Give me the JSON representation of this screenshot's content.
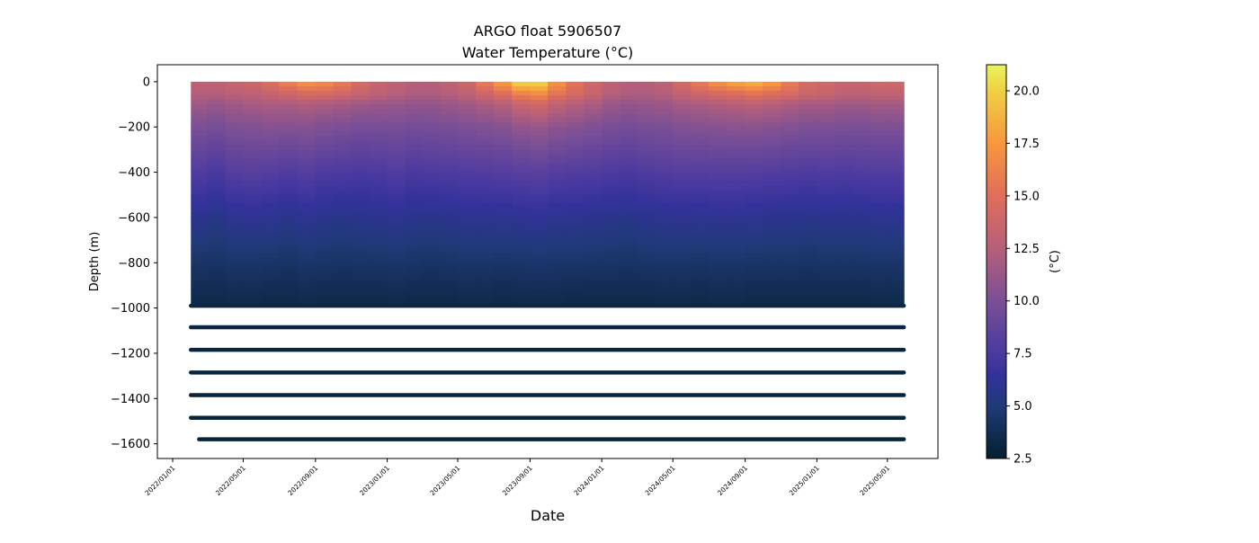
{
  "chart_data": {
    "type": "heatmap",
    "title": "ARGO float 5906507",
    "subtitle": "Water Temperature (°C)",
    "xlabel": "Date",
    "ylabel": "Depth (m)",
    "colorbar_label": "(°C)",
    "xlim": [
      "2021-12-06",
      "2025-07-26"
    ],
    "ylim": [
      -1665,
      75
    ],
    "x_ticks": [
      "2022/01/01",
      "2022/05/01",
      "2022/09/01",
      "2023/01/01",
      "2023/05/01",
      "2023/09/01",
      "2024/01/01",
      "2024/05/01",
      "2024/09/01",
      "2025/01/01",
      "2025/05/01"
    ],
    "y_ticks": [
      0,
      -200,
      -400,
      -600,
      -800,
      -1000,
      -1200,
      -1400,
      -1600
    ],
    "y_tick_labels": [
      "0",
      "−200",
      "−400",
      "−600",
      "−800",
      "−1000",
      "−1200",
      "−1400",
      "−1600"
    ],
    "colorbar_range": [
      2.5,
      21.24
    ],
    "colorbar_ticks": [
      "2.5",
      "5.0",
      "7.5",
      "10.0",
      "12.5",
      "15.0",
      "17.5",
      "20.0"
    ],
    "colormap_stops": [
      [
        0.0,
        "#04202f"
      ],
      [
        0.133,
        "#203a78"
      ],
      [
        0.21,
        "#32329a"
      ],
      [
        0.27,
        "#4b3aa0"
      ],
      [
        0.4,
        "#7a4f96"
      ],
      [
        0.533,
        "#b65f7a"
      ],
      [
        0.667,
        "#e06e5a"
      ],
      [
        0.8,
        "#f7973d"
      ],
      [
        0.934,
        "#f0d044"
      ],
      [
        1.0,
        "#e8f55a"
      ]
    ],
    "data_end": "2025-05-29",
    "profile_depths": [
      0,
      -50,
      -100,
      -200,
      -400,
      -600,
      -800,
      -975
    ],
    "profiles": [
      [
        "2022-02-01",
        13,
        12.5,
        11.5,
        10,
        7.8,
        5.9,
        4.4,
        3.4
      ],
      [
        "2022-03-01",
        13,
        12.5,
        11.2,
        9.8,
        7.5,
        5.7,
        4.3,
        3.4
      ],
      [
        "2022-04-01",
        13.5,
        12.8,
        11.5,
        10.2,
        8,
        6,
        4.5,
        3.5
      ],
      [
        "2022-05-01",
        14,
        13,
        11.8,
        10.3,
        8.2,
        6.1,
        4.5,
        3.5
      ],
      [
        "2022-06-01",
        15,
        13.5,
        12,
        10.5,
        8,
        6,
        4.4,
        3.4
      ],
      [
        "2022-07-01",
        16.5,
        14,
        12,
        10.4,
        7.8,
        5.8,
        4.3,
        3.4
      ],
      [
        "2022-08-01",
        17.5,
        14.5,
        12.2,
        10.5,
        8,
        6,
        4.5,
        3.5
      ],
      [
        "2022-09-01",
        17,
        14.5,
        12,
        10.2,
        7.7,
        5.8,
        4.4,
        3.4
      ],
      [
        "2022-10-01",
        16,
        14,
        11.8,
        10,
        7.6,
        5.7,
        4.3,
        3.4
      ],
      [
        "2022-11-01",
        14.5,
        13.5,
        11.5,
        9.8,
        7.5,
        5.8,
        4.4,
        3.4
      ],
      [
        "2022-12-01",
        13.5,
        13,
        11.3,
        9.8,
        7.6,
        5.9,
        4.4,
        3.4
      ],
      [
        "2023-01-01",
        13,
        12.6,
        11.2,
        9.9,
        7.8,
        6,
        4.5,
        3.5
      ],
      [
        "2023-02-01",
        12.5,
        12.2,
        11,
        9.7,
        7.5,
        5.8,
        4.4,
        3.4
      ],
      [
        "2023-03-01",
        12.5,
        12.2,
        11,
        9.8,
        7.6,
        5.8,
        4.3,
        3.4
      ],
      [
        "2023-04-01",
        13,
        12.5,
        11.3,
        9.9,
        7.7,
        5.9,
        4.4,
        3.4
      ],
      [
        "2023-05-01",
        14,
        13,
        11.6,
        10.1,
        7.8,
        6,
        4.5,
        3.5
      ],
      [
        "2023-06-01",
        16,
        14,
        12,
        10.3,
        7.9,
        6,
        4.5,
        3.5
      ],
      [
        "2023-07-01",
        18,
        15,
        12.5,
        10.5,
        8,
        6,
        4.4,
        3.4
      ],
      [
        "2023-08-01",
        20.5,
        16.5,
        13.5,
        11,
        8.2,
        6.1,
        4.5,
        3.5
      ],
      [
        "2023-09-01",
        20.5,
        17,
        14,
        11.2,
        8.3,
        6.2,
        4.6,
        3.5
      ],
      [
        "2023-10-01",
        17.5,
        15.5,
        13,
        10.8,
        8,
        6,
        4.5,
        3.5
      ],
      [
        "2023-11-01",
        15.5,
        14.5,
        12.5,
        10.5,
        7.9,
        6,
        4.5,
        3.4
      ],
      [
        "2023-12-01",
        14,
        13.5,
        12,
        10.2,
        7.8,
        5.9,
        4.4,
        3.4
      ],
      [
        "2024-01-01",
        13,
        12.6,
        11.3,
        9.9,
        7.6,
        5.8,
        4.4,
        3.4
      ],
      [
        "2024-02-01",
        12.5,
        12.2,
        11,
        9.7,
        7.5,
        5.7,
        4.3,
        3.4
      ],
      [
        "2024-03-01",
        12.5,
        12.2,
        11.2,
        9.9,
        7.7,
        5.9,
        4.4,
        3.4
      ],
      [
        "2024-04-01",
        13,
        12.5,
        11.4,
        10,
        7.9,
        6,
        4.5,
        3.5
      ],
      [
        "2024-05-01",
        14.5,
        13.2,
        11.8,
        10.3,
        8,
        6.1,
        4.5,
        3.5
      ],
      [
        "2024-06-01",
        16,
        14,
        12,
        10.4,
        8,
        6,
        4.4,
        3.4
      ],
      [
        "2024-07-01",
        17.5,
        14.5,
        12.3,
        10.5,
        8.1,
        6.1,
        4.5,
        3.5
      ],
      [
        "2024-08-01",
        18.5,
        15,
        12.5,
        10.6,
        8.1,
        6.1,
        4.5,
        3.5
      ],
      [
        "2024-09-01",
        19,
        15.5,
        12.8,
        10.7,
        8,
        6,
        4.4,
        3.4
      ],
      [
        "2024-10-01",
        18,
        15,
        12.5,
        10.5,
        7.9,
        5.9,
        4.4,
        3.4
      ],
      [
        "2024-11-01",
        16,
        14.5,
        12.2,
        10.3,
        7.8,
        5.9,
        4.4,
        3.4
      ],
      [
        "2024-12-01",
        14.5,
        13.8,
        11.8,
        10.1,
        7.7,
        5.8,
        4.3,
        3.4
      ],
      [
        "2025-01-01",
        14,
        13.5,
        11.8,
        10.1,
        7.8,
        5.9,
        4.4,
        3.4
      ],
      [
        "2025-02-01",
        13.5,
        13,
        11.5,
        10,
        7.7,
        5.9,
        4.4,
        3.4
      ],
      [
        "2025-03-01",
        13.5,
        13,
        11.5,
        10,
        7.8,
        5.9,
        4.4,
        3.4
      ],
      [
        "2025-04-01",
        14,
        13.2,
        11.7,
        10.1,
        7.9,
        6,
        4.5,
        3.5
      ],
      [
        "2025-05-01",
        14,
        13.2,
        11.7,
        10.1,
        7.9,
        6,
        4.5,
        3.5
      ]
    ],
    "deep_levels": [
      {
        "depth": -990,
        "start": "2022-02-01",
        "end": "2025-05-29",
        "temperature": 3.2
      },
      {
        "depth": -1085,
        "start": "2022-02-01",
        "end": "2025-05-29",
        "temperature": 3.1
      },
      {
        "depth": -1185,
        "start": "2022-02-01",
        "end": "2025-05-29",
        "temperature": 3.0
      },
      {
        "depth": -1285,
        "start": "2022-02-01",
        "end": "2025-05-29",
        "temperature": 2.95
      },
      {
        "depth": -1385,
        "start": "2022-02-01",
        "end": "2025-05-29",
        "temperature": 2.9
      },
      {
        "depth": -1485,
        "start": "2022-02-01",
        "end": "2025-05-29",
        "temperature": 2.85
      },
      {
        "depth": -1580,
        "start": "2022-02-15",
        "end": "2025-05-29",
        "temperature": 2.8
      }
    ]
  }
}
